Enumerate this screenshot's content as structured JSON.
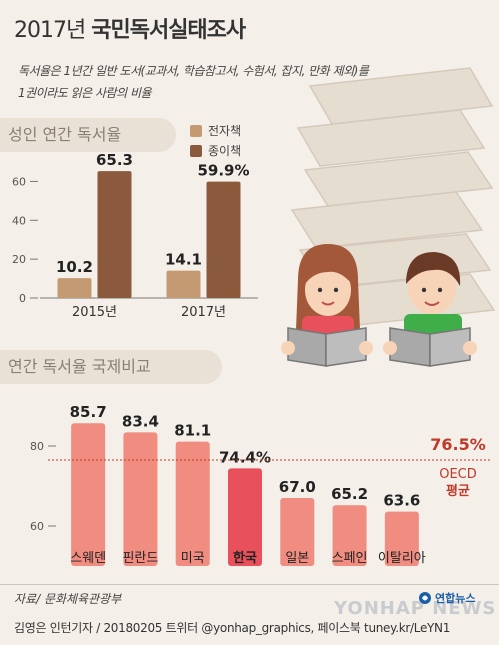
{
  "header": {
    "title_year": "2017년 ",
    "title_main": "국민독서실태조사",
    "desc_line1": "독서율은 1년간 일반 도서(교과서, 학습참고서, 수험서, 잡지, 만화 제외)를",
    "desc_line2": "1권이라도 읽은 사람의 비율"
  },
  "section1": {
    "label": "성인 연간 독서율"
  },
  "section2": {
    "label": "연간 독서율 국제비교"
  },
  "colors": {
    "ebook": "#c49a72",
    "paper": "#8b5a3c",
    "country": "#f08c80",
    "korea": "#e8505b",
    "oecd": "#c0392b"
  },
  "chart_data": [
    {
      "type": "bar",
      "title": "성인 연간 독서율",
      "categories": [
        "2015년",
        "2017년"
      ],
      "series": [
        {
          "name": "전자책",
          "values": [
            10.2,
            14.1
          ],
          "labels": [
            "10.2",
            "14.1"
          ]
        },
        {
          "name": "종이책",
          "values": [
            65.3,
            59.9
          ],
          "labels": [
            "65.3",
            "59.9%"
          ]
        }
      ],
      "yticks": [
        0,
        20,
        40,
        60
      ],
      "ylim": [
        0,
        70
      ],
      "legend": "top-right"
    },
    {
      "type": "bar",
      "title": "연간 독서율 국제비교",
      "categories": [
        "스웨덴",
        "핀란드",
        "미국",
        "한국",
        "일본",
        "스페인",
        "이탈리아"
      ],
      "values": [
        85.7,
        83.4,
        81.1,
        74.4,
        67.0,
        65.2,
        63.6
      ],
      "labels": [
        "85.7",
        "83.4",
        "81.1",
        "74.4%",
        "67.0",
        "65.2",
        "63.6"
      ],
      "highlight": "한국",
      "yticks": [
        60,
        80
      ],
      "ylim": [
        50,
        90
      ],
      "reference_line": {
        "value": 76.5,
        "label_value": "76.5%",
        "label_line1": "OECD",
        "label_line2": "평균"
      }
    }
  ],
  "footer": {
    "source": "자료/ 문화체육관광부",
    "credit": "김영은 인턴기자 / 20180205   트위터 @yonhap_graphics, 페이스북 tuney.kr/LeYN1",
    "logo": "연합뉴스",
    "watermark": "YONHAP NEWS"
  }
}
